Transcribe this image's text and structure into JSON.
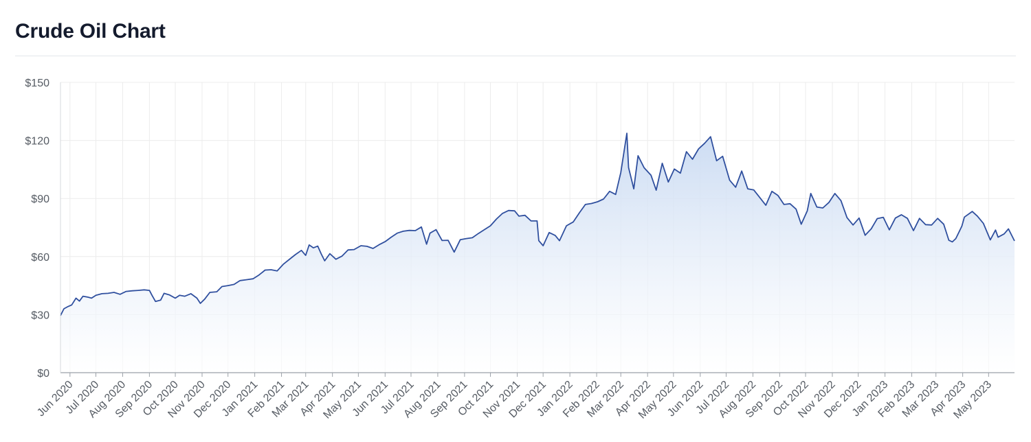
{
  "page": {
    "title": "Crude Oil Chart"
  },
  "colors": {
    "line": "#2f4f9e",
    "fill_top": "#c9daf2",
    "fill_bottom": "#ffffff",
    "grid": "#ececec",
    "axis": "#9ba1a8",
    "title": "#141b2d"
  },
  "chart_data": {
    "type": "area",
    "title": "Crude Oil Chart",
    "xlabel": "",
    "ylabel": "",
    "ylim": [
      0,
      150
    ],
    "y_ticks": [
      0,
      30,
      60,
      90,
      120,
      150
    ],
    "y_tick_labels": [
      "$0",
      "$30",
      "$60",
      "$90",
      "$120",
      "$150"
    ],
    "x_tick_labels": [
      "Jun 2020",
      "Jul 2020",
      "Aug 2020",
      "Sep 2020",
      "Oct 2020",
      "Nov 2020",
      "Dec 2020",
      "Jan 2021",
      "Feb 2021",
      "Mar 2021",
      "Apr 2021",
      "May 2021",
      "Jun 2021",
      "Jul 2021",
      "Aug 2021",
      "Sep 2021",
      "Oct 2021",
      "Nov 2021",
      "Dec 2021",
      "Jan 2022",
      "Feb 2022",
      "Mar 2022",
      "Apr 2022",
      "May 2022",
      "Jun 2022",
      "Jul 2022",
      "Aug 2022",
      "Sep 2022",
      "Oct 2022",
      "Nov 2022",
      "Dec 2022",
      "Jan 2023",
      "Feb 2023",
      "Mar 2023",
      "Apr 2023",
      "May 2023"
    ],
    "x_ticks": [
      "2020-06-01",
      "2020-07-01",
      "2020-08-01",
      "2020-09-01",
      "2020-10-01",
      "2020-11-01",
      "2020-12-01",
      "2021-01-01",
      "2021-02-01",
      "2021-03-01",
      "2021-04-01",
      "2021-05-01",
      "2021-06-01",
      "2021-07-01",
      "2021-08-01",
      "2021-09-01",
      "2021-10-01",
      "2021-11-01",
      "2021-12-01",
      "2022-01-01",
      "2022-02-01",
      "2022-03-01",
      "2022-04-01",
      "2022-05-01",
      "2022-06-01",
      "2022-07-01",
      "2022-08-01",
      "2022-09-01",
      "2022-10-01",
      "2022-11-01",
      "2022-12-01",
      "2023-01-01",
      "2023-02-01",
      "2023-03-01",
      "2023-04-01",
      "2023-05-01"
    ],
    "xlim": [
      "2020-05-21",
      "2023-05-31"
    ],
    "grid": true,
    "series": [
      {
        "values": [
          [
            "2020-05-21",
            29.5
          ],
          [
            "2020-05-25",
            33
          ],
          [
            "2020-05-29",
            34
          ],
          [
            "2020-06-03",
            35
          ],
          [
            "2020-06-08",
            38.5
          ],
          [
            "2020-06-12",
            37
          ],
          [
            "2020-06-16",
            39.5
          ],
          [
            "2020-06-22",
            39
          ],
          [
            "2020-06-26",
            38.5
          ],
          [
            "2020-07-01",
            40
          ],
          [
            "2020-07-08",
            40.8
          ],
          [
            "2020-07-15",
            41
          ],
          [
            "2020-07-22",
            41.5
          ],
          [
            "2020-07-29",
            40.5
          ],
          [
            "2020-08-05",
            42
          ],
          [
            "2020-08-12",
            42.3
          ],
          [
            "2020-08-19",
            42.5
          ],
          [
            "2020-08-26",
            42.8
          ],
          [
            "2020-09-01",
            42.5
          ],
          [
            "2020-09-04",
            40
          ],
          [
            "2020-09-08",
            36.8
          ],
          [
            "2020-09-14",
            37.5
          ],
          [
            "2020-09-18",
            41
          ],
          [
            "2020-09-24",
            40.2
          ],
          [
            "2020-10-01",
            38.5
          ],
          [
            "2020-10-06",
            40
          ],
          [
            "2020-10-12",
            39.5
          ],
          [
            "2020-10-19",
            40.8
          ],
          [
            "2020-10-26",
            38.5
          ],
          [
            "2020-10-30",
            35.8
          ],
          [
            "2020-11-04",
            38
          ],
          [
            "2020-11-10",
            41.5
          ],
          [
            "2020-11-18",
            41.8
          ],
          [
            "2020-11-24",
            44.5
          ],
          [
            "2020-12-01",
            45
          ],
          [
            "2020-12-08",
            45.6
          ],
          [
            "2020-12-15",
            47.6
          ],
          [
            "2020-12-22",
            48
          ],
          [
            "2020-12-30",
            48.5
          ],
          [
            "2021-01-06",
            50.5
          ],
          [
            "2021-01-13",
            53
          ],
          [
            "2021-01-20",
            53.2
          ],
          [
            "2021-01-27",
            52.6
          ],
          [
            "2021-02-03",
            56
          ],
          [
            "2021-02-10",
            58.5
          ],
          [
            "2021-02-17",
            61
          ],
          [
            "2021-02-24",
            63.2
          ],
          [
            "2021-03-01",
            60.6
          ],
          [
            "2021-03-05",
            66
          ],
          [
            "2021-03-10",
            64.5
          ],
          [
            "2021-03-15",
            65.4
          ],
          [
            "2021-03-19",
            61.4
          ],
          [
            "2021-03-23",
            57.8
          ],
          [
            "2021-03-29",
            61.5
          ],
          [
            "2021-04-05",
            58.6
          ],
          [
            "2021-04-12",
            60.2
          ],
          [
            "2021-04-19",
            63.4
          ],
          [
            "2021-04-26",
            63.6
          ],
          [
            "2021-05-04",
            65.6
          ],
          [
            "2021-05-11",
            65.3
          ],
          [
            "2021-05-18",
            64.2
          ],
          [
            "2021-05-25",
            66.1
          ],
          [
            "2021-06-01",
            67.7
          ],
          [
            "2021-06-08",
            70
          ],
          [
            "2021-06-15",
            72.1
          ],
          [
            "2021-06-22",
            73.1
          ],
          [
            "2021-06-29",
            73.5
          ],
          [
            "2021-07-06",
            73.4
          ],
          [
            "2021-07-13",
            75.3
          ],
          [
            "2021-07-19",
            66.4
          ],
          [
            "2021-07-23",
            72.1
          ],
          [
            "2021-07-30",
            73.9
          ],
          [
            "2021-08-06",
            68.3
          ],
          [
            "2021-08-13",
            68.4
          ],
          [
            "2021-08-20",
            62.3
          ],
          [
            "2021-08-27",
            68.7
          ],
          [
            "2021-09-03",
            69.3
          ],
          [
            "2021-09-10",
            69.7
          ],
          [
            "2021-09-17",
            71.9
          ],
          [
            "2021-09-24",
            73.9
          ],
          [
            "2021-10-01",
            75.9
          ],
          [
            "2021-10-08",
            79.4
          ],
          [
            "2021-10-15",
            82.3
          ],
          [
            "2021-10-22",
            83.8
          ],
          [
            "2021-10-29",
            83.6
          ],
          [
            "2021-11-03",
            80.9
          ],
          [
            "2021-11-10",
            81.3
          ],
          [
            "2021-11-17",
            78.4
          ],
          [
            "2021-11-24",
            78.4
          ],
          [
            "2021-11-26",
            68.2
          ],
          [
            "2021-12-01",
            65.6
          ],
          [
            "2021-12-08",
            72.4
          ],
          [
            "2021-12-15",
            70.9
          ],
          [
            "2021-12-20",
            68.2
          ],
          [
            "2021-12-28",
            75.9
          ],
          [
            "2022-01-05",
            77.9
          ],
          [
            "2022-01-12",
            82.6
          ],
          [
            "2022-01-19",
            86.9
          ],
          [
            "2022-01-26",
            87.4
          ],
          [
            "2022-02-02",
            88.3
          ],
          [
            "2022-02-09",
            89.7
          ],
          [
            "2022-02-16",
            93.7
          ],
          [
            "2022-02-23",
            92.1
          ],
          [
            "2022-03-01",
            103.4
          ],
          [
            "2022-03-08",
            123.7
          ],
          [
            "2022-03-10",
            106
          ],
          [
            "2022-03-16",
            95
          ],
          [
            "2022-03-21",
            112.1
          ],
          [
            "2022-03-28",
            105.9
          ],
          [
            "2022-04-05",
            102
          ],
          [
            "2022-04-11",
            94.3
          ],
          [
            "2022-04-18",
            108.2
          ],
          [
            "2022-04-25",
            98.5
          ],
          [
            "2022-05-02",
            105.2
          ],
          [
            "2022-05-09",
            103.1
          ],
          [
            "2022-05-16",
            114.2
          ],
          [
            "2022-05-23",
            110.3
          ],
          [
            "2022-05-30",
            115.6
          ],
          [
            "2022-06-06",
            118.5
          ],
          [
            "2022-06-13",
            121.9
          ],
          [
            "2022-06-20",
            109.5
          ],
          [
            "2022-06-27",
            111.8
          ],
          [
            "2022-07-05",
            99.5
          ],
          [
            "2022-07-12",
            95.8
          ],
          [
            "2022-07-19",
            104.2
          ],
          [
            "2022-07-26",
            95
          ],
          [
            "2022-08-02",
            94.4
          ],
          [
            "2022-08-09",
            90.5
          ],
          [
            "2022-08-16",
            86.5
          ],
          [
            "2022-08-23",
            93.7
          ],
          [
            "2022-08-30",
            91.6
          ],
          [
            "2022-09-06",
            86.9
          ],
          [
            "2022-09-13",
            87.3
          ],
          [
            "2022-09-20",
            84.5
          ],
          [
            "2022-09-26",
            76.7
          ],
          [
            "2022-10-03",
            83.6
          ],
          [
            "2022-10-07",
            92.6
          ],
          [
            "2022-10-14",
            85.6
          ],
          [
            "2022-10-21",
            85.1
          ],
          [
            "2022-10-28",
            87.9
          ],
          [
            "2022-11-04",
            92.6
          ],
          [
            "2022-11-11",
            88.9
          ],
          [
            "2022-11-18",
            80.1
          ],
          [
            "2022-11-25",
            76.3
          ],
          [
            "2022-12-02",
            79.9
          ],
          [
            "2022-12-09",
            71
          ],
          [
            "2022-12-16",
            74.3
          ],
          [
            "2022-12-23",
            79.6
          ],
          [
            "2022-12-30",
            80.3
          ],
          [
            "2023-01-06",
            73.8
          ],
          [
            "2023-01-13",
            79.9
          ],
          [
            "2023-01-20",
            81.6
          ],
          [
            "2023-01-27",
            79.7
          ],
          [
            "2023-02-03",
            73.4
          ],
          [
            "2023-02-10",
            79.7
          ],
          [
            "2023-02-17",
            76.5
          ],
          [
            "2023-02-24",
            76.3
          ],
          [
            "2023-03-03",
            79.7
          ],
          [
            "2023-03-10",
            76.7
          ],
          [
            "2023-03-16",
            68.4
          ],
          [
            "2023-03-20",
            67.6
          ],
          [
            "2023-03-24",
            69.3
          ],
          [
            "2023-03-31",
            75.7
          ],
          [
            "2023-04-03",
            80.4
          ],
          [
            "2023-04-12",
            83.3
          ],
          [
            "2023-04-18",
            80.9
          ],
          [
            "2023-04-25",
            77.1
          ],
          [
            "2023-05-03",
            68.6
          ],
          [
            "2023-05-09",
            73.7
          ],
          [
            "2023-05-12",
            70
          ],
          [
            "2023-05-19",
            71.7
          ],
          [
            "2023-05-24",
            74.3
          ],
          [
            "2023-05-31",
            68.1
          ]
        ]
      }
    ]
  }
}
